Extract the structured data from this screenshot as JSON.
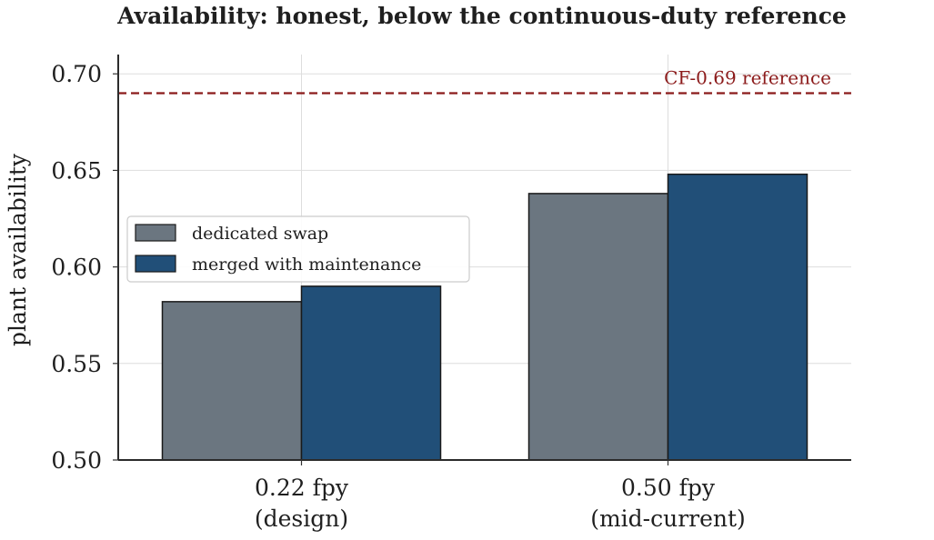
{
  "chart_data": {
    "type": "bar",
    "title": "Availability: honest, below the continuous-duty reference",
    "xlabel": "",
    "ylabel": "plant availability",
    "categories": [
      "0.22 fpy\n(design)",
      "0.50 fpy\n(mid-current)"
    ],
    "series": [
      {
        "name": "dedicated swap",
        "values": [
          0.582,
          0.638
        ],
        "color": "#6b7680"
      },
      {
        "name": "merged with maintenance",
        "values": [
          0.59,
          0.648
        ],
        "color": "#214f78"
      }
    ],
    "ylim": [
      0.5,
      0.71
    ],
    "yticks": [
      "0.50",
      "0.55",
      "0.60",
      "0.65",
      "0.70"
    ],
    "grid": true,
    "legend_position": "center-left",
    "reference_line": {
      "value": 0.69,
      "label": "CF-0.69 reference",
      "color": "#8b1a1a",
      "style": "dashed"
    }
  }
}
